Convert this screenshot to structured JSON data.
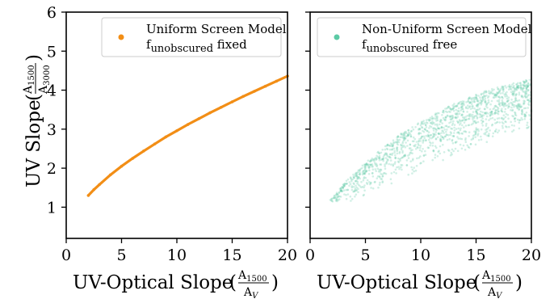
{
  "chart_data": [
    {
      "type": "line",
      "panel": "left",
      "xlabel": "UV-Optical Slope",
      "xlabel_frac": {
        "num": "A",
        "num_sub": "1500",
        "den": "A",
        "den_sub": "V"
      },
      "ylabel": "UV Slope",
      "ylabel_frac": {
        "num": "A",
        "num_sub": "1500",
        "den": "A",
        "den_sub": "3000"
      },
      "xlim": [
        0,
        20
      ],
      "ylim": [
        0.2,
        6
      ],
      "xticks": [
        0,
        5,
        10,
        15,
        20
      ],
      "yticks": [
        1,
        2,
        3,
        4,
        5,
        6
      ],
      "legend": {
        "placement": "top-right",
        "line1": "Uniform Screen Model",
        "line2_main": "f",
        "line2_sub": "unobscured",
        "line2_tail": " fixed"
      },
      "color": "#f28e16",
      "series": [
        {
          "x": [
            2,
            2.5,
            3,
            4,
            5,
            6,
            7,
            8,
            9,
            10,
            11,
            12,
            13,
            14,
            15,
            16,
            17,
            18,
            19,
            20
          ],
          "values": [
            1.3,
            1.45,
            1.58,
            1.83,
            2.05,
            2.25,
            2.44,
            2.62,
            2.8,
            2.96,
            3.12,
            3.27,
            3.42,
            3.56,
            3.7,
            3.84,
            3.97,
            4.1,
            4.23,
            4.36
          ]
        }
      ]
    },
    {
      "type": "scatter",
      "panel": "right",
      "xlabel": "UV-Optical Slope",
      "xlabel_frac": {
        "num": "A",
        "num_sub": "1500",
        "den": "A",
        "den_sub": "V"
      },
      "xlim": [
        0,
        20
      ],
      "ylim": [
        0.2,
        6
      ],
      "xticks": [
        0,
        5,
        10,
        15,
        20
      ],
      "yticks": [
        1,
        2,
        3,
        4,
        5,
        6
      ],
      "legend": {
        "placement": "top-right",
        "line1": "Non-Uniform Screen Model",
        "line2_main": "f",
        "line2_sub": "unobscured",
        "line2_tail": " free"
      },
      "color": "#5ccaa5",
      "band": {
        "x_range": [
          1.8,
          20
        ],
        "upper": [
          [
            1.8,
            1.2
          ],
          [
            3,
            1.6
          ],
          [
            5,
            2.15
          ],
          [
            8,
            2.85
          ],
          [
            10,
            3.2
          ],
          [
            13,
            3.65
          ],
          [
            16,
            4.0
          ],
          [
            20,
            4.3
          ]
        ],
        "lower": [
          [
            1.8,
            1.15
          ],
          [
            3,
            1.05
          ],
          [
            5,
            1.3
          ],
          [
            8,
            1.65
          ],
          [
            10,
            1.9
          ],
          [
            13,
            2.3
          ],
          [
            16,
            2.65
          ],
          [
            20,
            3.0
          ]
        ]
      }
    }
  ],
  "xticklabels": [
    "0",
    "5",
    "10",
    "15",
    "20"
  ],
  "yticklabels": [
    "1",
    "2",
    "3",
    "4",
    "5",
    "6"
  ]
}
